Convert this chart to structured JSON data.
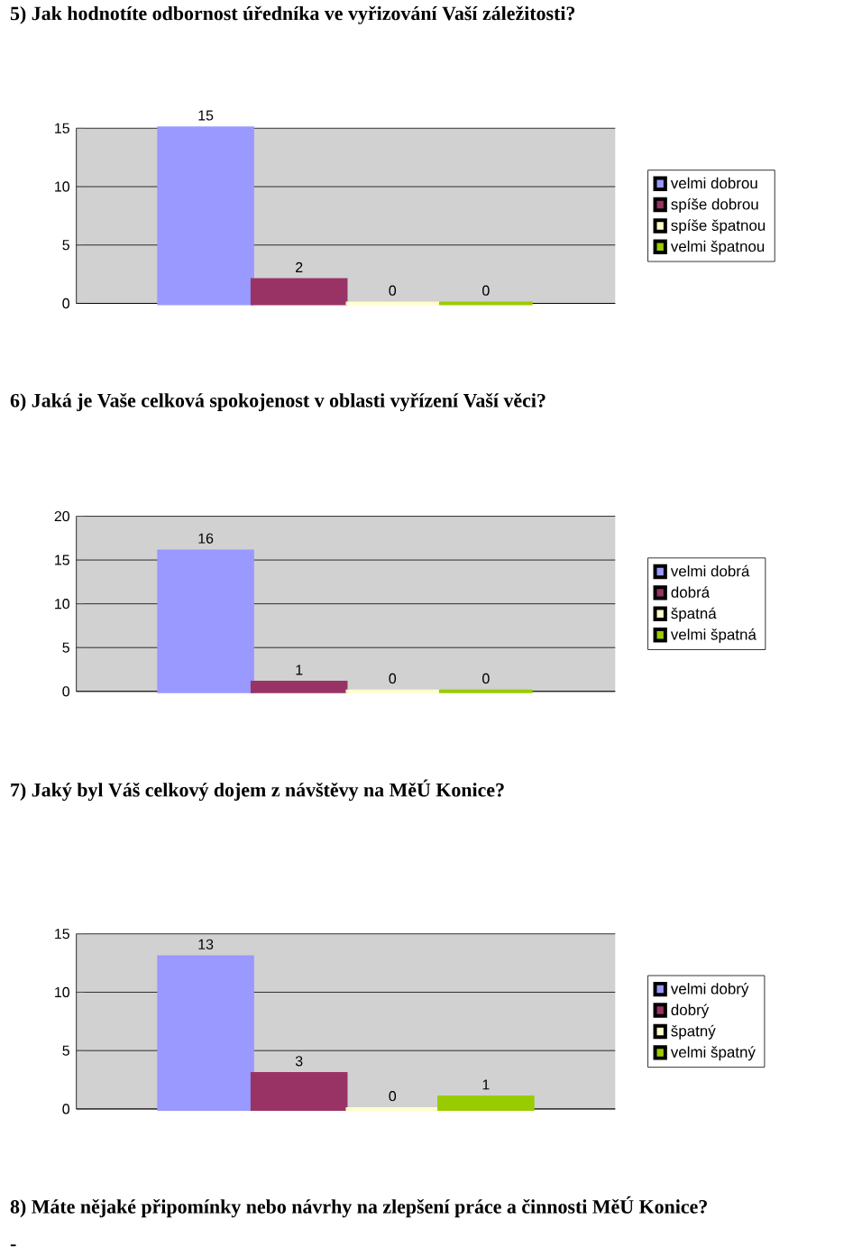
{
  "chart_data": [
    {
      "type": "bar",
      "title": "5) Jak hodnotíte odbornost úředníka ve vyřizování Vaší záležitosti?",
      "categories": [
        null
      ],
      "ylim": [
        0,
        15
      ],
      "yticks": [
        0,
        5,
        10,
        15
      ],
      "grid": "y",
      "legend": "right",
      "data_labels": true,
      "series": [
        {
          "name": "velmi dobrou",
          "color": "#9999ff",
          "values": [
            15
          ]
        },
        {
          "name": "spíše dobrou",
          "color": "#993366",
          "values": [
            2
          ]
        },
        {
          "name": "spíše špatnou",
          "color": "#ffffcc",
          "values": [
            0
          ]
        },
        {
          "name": "velmi špatnou",
          "color": "#99cc00",
          "values": [
            0
          ]
        }
      ]
    },
    {
      "type": "bar",
      "title": "6) Jaká je Vaše celková spokojenost v oblasti vyřízení Vaší věci?",
      "categories": [
        null
      ],
      "ylim": [
        0,
        20
      ],
      "yticks": [
        0,
        5,
        10,
        15,
        20
      ],
      "grid": "y",
      "legend": "right",
      "data_labels": true,
      "series": [
        {
          "name": "velmi dobrá",
          "color": "#9999ff",
          "values": [
            16
          ]
        },
        {
          "name": "dobrá",
          "color": "#993366",
          "values": [
            1
          ]
        },
        {
          "name": "špatná",
          "color": "#ffffcc",
          "values": [
            0
          ]
        },
        {
          "name": "velmi špatná",
          "color": "#99cc00",
          "values": [
            0
          ]
        }
      ]
    },
    {
      "type": "bar",
      "title": "7) Jaký byl Váš celkový dojem z návštěvy na MěÚ Konice?",
      "categories": [
        null
      ],
      "ylim": [
        0,
        15
      ],
      "yticks": [
        0,
        5,
        10,
        15
      ],
      "grid": "y",
      "legend": "right",
      "data_labels": true,
      "annotations": [
        "8)  Máte nějaké připomínky nebo návrhy na zlepšení práce a činnosti MěÚ Konice?",
        "-"
      ],
      "series": [
        {
          "name": "velmi dobrý",
          "color": "#9999ff",
          "values": [
            13
          ]
        },
        {
          "name": "dobrý",
          "color": "#993366",
          "values": [
            3
          ]
        },
        {
          "name": "špatný",
          "color": "#ffffcc",
          "values": [
            0
          ]
        },
        {
          "name": "velmi špatný",
          "color": "#99cc00",
          "values": [
            1
          ]
        }
      ]
    }
  ]
}
